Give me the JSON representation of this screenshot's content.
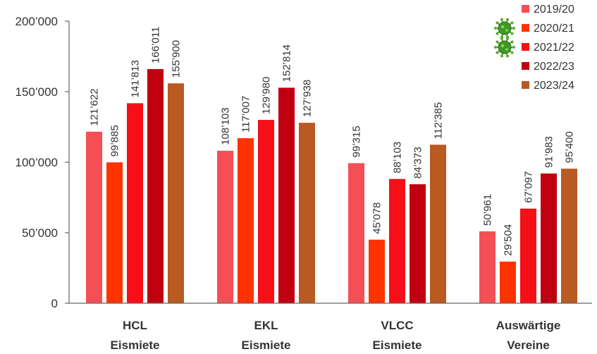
{
  "chart_data": {
    "type": "bar",
    "categories": [
      [
        "HCL",
        "Eismiete"
      ],
      [
        "EKL",
        "Eismiete"
      ],
      [
        "VLCC",
        "Eismiete"
      ],
      [
        "Auswärtige",
        "Vereine"
      ]
    ],
    "series": [
      {
        "name": "2019/20",
        "color": "#f44f55",
        "values": [
          121622,
          108103,
          99315,
          50961
        ],
        "labels": [
          "121’622",
          "108’103",
          "99’315",
          "50’961"
        ],
        "virus_icon": false
      },
      {
        "name": "2020/21",
        "color": "#ff3300",
        "values": [
          99885,
          117007,
          45078,
          29504
        ],
        "labels": [
          "99’885",
          "117’007",
          "45’078",
          "29’504"
        ],
        "virus_icon": true
      },
      {
        "name": "2021/22",
        "color": "#f70f17",
        "values": [
          141813,
          129980,
          88103,
          67097
        ],
        "labels": [
          "141’813",
          "129’980",
          "88’103",
          "67’097"
        ],
        "virus_icon": true
      },
      {
        "name": "2022/23",
        "color": "#c00010",
        "values": [
          166011,
          152814,
          84373,
          91983
        ],
        "labels": [
          "166’011",
          "152’814",
          "84’373",
          "91’983"
        ],
        "virus_icon": false
      },
      {
        "name": "2023/24",
        "color": "#b85a22",
        "values": [
          155900,
          127938,
          112385,
          95400
        ],
        "labels": [
          "155’900",
          "127’938",
          "112’385",
          "95’400"
        ],
        "virus_icon": false
      }
    ],
    "ylim": [
      0,
      200000
    ],
    "yticks": [
      0,
      50000,
      100000,
      150000,
      200000
    ],
    "ytick_labels": [
      "0",
      "50’000",
      "100’000",
      "150’000",
      "200’000"
    ],
    "title": "",
    "xlabel": "",
    "ylabel": "",
    "grid": false,
    "legend_position": "top-right"
  }
}
